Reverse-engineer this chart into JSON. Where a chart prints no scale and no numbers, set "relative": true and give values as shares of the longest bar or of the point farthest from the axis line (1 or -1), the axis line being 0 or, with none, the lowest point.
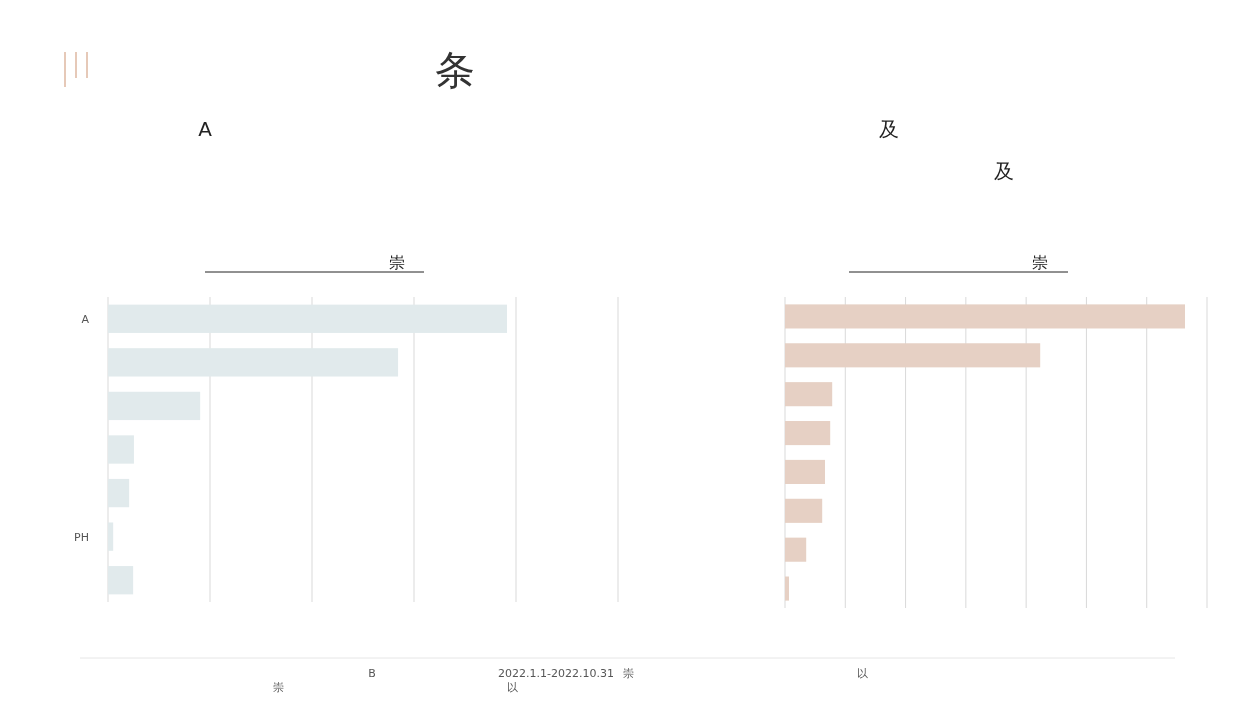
{
  "chart_data": [
    {
      "type": "bar",
      "orientation": "horizontal",
      "relative": true,
      "grid": "x",
      "title": "A",
      "subtitle": "崇",
      "categories": [
        "A",
        null,
        null,
        null,
        null,
        "PH",
        null
      ],
      "color": "#e1eaec",
      "values": [
        1,
        0.727,
        0.231,
        0.065,
        0.053,
        0.013,
        0.063
      ],
      "annotations": [
        "条",
        "B",
        "2022.1.1-2022.10.31",
        "崇",
        "以",
        "崇",
        "以"
      ]
    },
    {
      "type": "bar",
      "orientation": "horizontal",
      "relative": true,
      "grid": "x",
      "title": "及",
      "subtitle": "及",
      "categories": [
        null,
        null,
        null,
        null,
        null,
        null,
        null,
        null
      ],
      "color": "#e6d0c4",
      "values": [
        1,
        0.638,
        0.118,
        0.113,
        0.1,
        0.093,
        0.053,
        0.01
      ],
      "annotations": [
        "崇"
      ]
    }
  ]
}
